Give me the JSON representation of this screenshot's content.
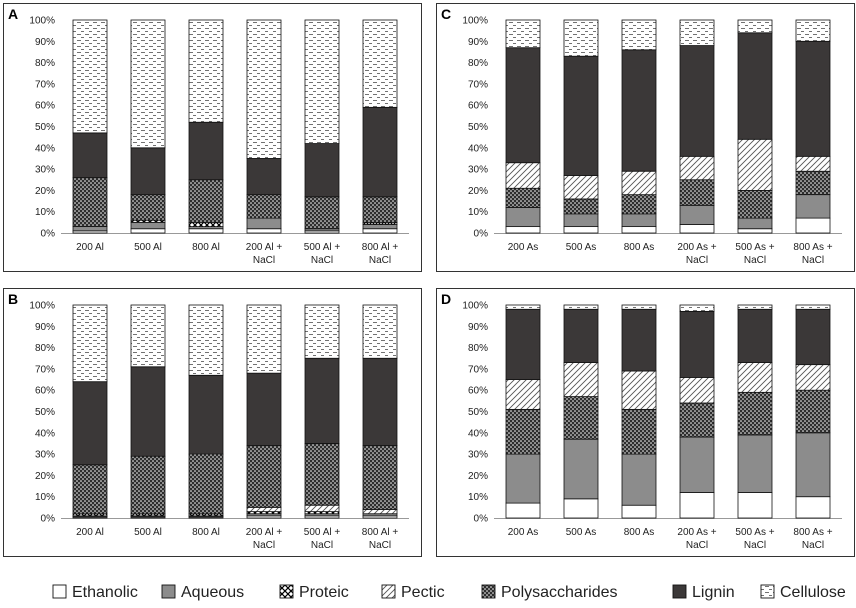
{
  "chart_data": {
    "type": "bar",
    "stacked": true,
    "percent": true,
    "series_order": [
      "Ethanolic",
      "Aqueous",
      "Proteic",
      "Pectic",
      "Polysaccharides",
      "Lignin",
      "Cellulose"
    ],
    "legend": [
      {
        "name": "Ethanolic",
        "fill": "white"
      },
      {
        "name": "Aqueous",
        "fill": "gray"
      },
      {
        "name": "Proteic",
        "fill": "crosshatch"
      },
      {
        "name": "Pectic",
        "fill": "diagonal"
      },
      {
        "name": "Polysaccharides",
        "fill": "dense-dots"
      },
      {
        "name": "Lignin",
        "fill": "dark"
      },
      {
        "name": "Cellulose",
        "fill": "dashes"
      }
    ],
    "y_ticks": [
      "0%",
      "10%",
      "20%",
      "30%",
      "40%",
      "50%",
      "60%",
      "70%",
      "80%",
      "90%",
      "100%"
    ],
    "ylim": [
      0,
      100
    ],
    "panels": [
      {
        "label": "A",
        "categories": [
          [
            "200 Al"
          ],
          [
            "500 Al"
          ],
          [
            "800 Al"
          ],
          [
            "200 Al +",
            "NaCl"
          ],
          [
            "500 Al +",
            "NaCl"
          ],
          [
            "800 Al +",
            "NaCl"
          ]
        ],
        "series": [
          {
            "name": "Ethanolic",
            "values": [
              1,
              2,
              2,
              2,
              1,
              2
            ]
          },
          {
            "name": "Aqueous",
            "values": [
              2,
              3,
              1,
              5,
              1,
              2
            ]
          },
          {
            "name": "Proteic",
            "values": [
              0,
              1,
              2,
              0,
              0,
              1
            ]
          },
          {
            "name": "Pectic",
            "values": [
              0,
              0,
              0,
              0,
              0,
              0
            ]
          },
          {
            "name": "Polysaccharides",
            "values": [
              23,
              12,
              20,
              11,
              15,
              12
            ]
          },
          {
            "name": "Lignin",
            "values": [
              21,
              22,
              27,
              17,
              25,
              42
            ]
          },
          {
            "name": "Cellulose",
            "values": [
              53,
              60,
              48,
              65,
              58,
              41
            ]
          }
        ]
      },
      {
        "label": "B",
        "categories": [
          [
            "200 Al"
          ],
          [
            "500 Al"
          ],
          [
            "800 Al"
          ],
          [
            "200 Al +",
            "NaCl"
          ],
          [
            "500 Al +",
            "NaCl"
          ],
          [
            "800 Al +",
            "NaCl"
          ]
        ],
        "series": [
          {
            "name": "Ethanolic",
            "values": [
              0.5,
              0.5,
              0.5,
              1,
              1,
              1
            ]
          },
          {
            "name": "Aqueous",
            "values": [
              0.5,
              0.5,
              0.5,
              1,
              1,
              1
            ]
          },
          {
            "name": "Proteic",
            "values": [
              1,
              1,
              1,
              1,
              1,
              0
            ]
          },
          {
            "name": "Pectic",
            "values": [
              0,
              0,
              0,
              2,
              3,
              2
            ]
          },
          {
            "name": "Polysaccharides",
            "values": [
              23,
              27,
              28,
              29,
              29,
              30
            ]
          },
          {
            "name": "Lignin",
            "values": [
              39,
              42,
              37,
              34,
              40,
              41
            ]
          },
          {
            "name": "Cellulose",
            "values": [
              36,
              29,
              33,
              32,
              25,
              25
            ]
          }
        ]
      },
      {
        "label": "C",
        "categories": [
          [
            "200 As"
          ],
          [
            "500 As"
          ],
          [
            "800 As"
          ],
          [
            "200 As +",
            "NaCl"
          ],
          [
            "500 As +",
            "NaCl"
          ],
          [
            "800 As +",
            "NaCl"
          ]
        ],
        "series": [
          {
            "name": "Ethanolic",
            "values": [
              3,
              3,
              3,
              4,
              2,
              7
            ]
          },
          {
            "name": "Aqueous",
            "values": [
              9,
              6,
              6,
              9,
              5,
              11
            ]
          },
          {
            "name": "Proteic",
            "values": [
              0,
              0,
              0,
              0,
              0,
              0
            ]
          },
          {
            "name": "Polysaccharides",
            "values": [
              9,
              7,
              9,
              12,
              13,
              11
            ]
          },
          {
            "name": "Pectic",
            "values": [
              12,
              11,
              11,
              11,
              24,
              7
            ]
          },
          {
            "name": "Lignin",
            "values": [
              54,
              56,
              57,
              52,
              50,
              54
            ]
          },
          {
            "name": "Cellulose",
            "values": [
              13,
              17,
              14,
              12,
              6,
              10
            ]
          }
        ]
      },
      {
        "label": "D",
        "categories": [
          [
            "200 As"
          ],
          [
            "500 As"
          ],
          [
            "800 As"
          ],
          [
            "200 As +",
            "NaCl"
          ],
          [
            "500 As +",
            "NaCl"
          ],
          [
            "800 As +",
            "NaCl"
          ]
        ],
        "series": [
          {
            "name": "Ethanolic",
            "values": [
              7,
              9,
              6,
              12,
              12,
              10
            ]
          },
          {
            "name": "Aqueous",
            "values": [
              23,
              28,
              24,
              26,
              27,
              30
            ]
          },
          {
            "name": "Proteic",
            "values": [
              0,
              0,
              0,
              0,
              0,
              0
            ]
          },
          {
            "name": "Polysaccharides",
            "values": [
              21,
              20,
              21,
              16,
              20,
              20
            ]
          },
          {
            "name": "Pectic",
            "values": [
              14,
              16,
              18,
              12,
              14,
              12
            ]
          },
          {
            "name": "Lignin",
            "values": [
              33,
              25,
              29,
              31,
              25,
              26
            ]
          },
          {
            "name": "Cellulose",
            "values": [
              2,
              2,
              2,
              3,
              2,
              2
            ]
          }
        ]
      }
    ]
  }
}
